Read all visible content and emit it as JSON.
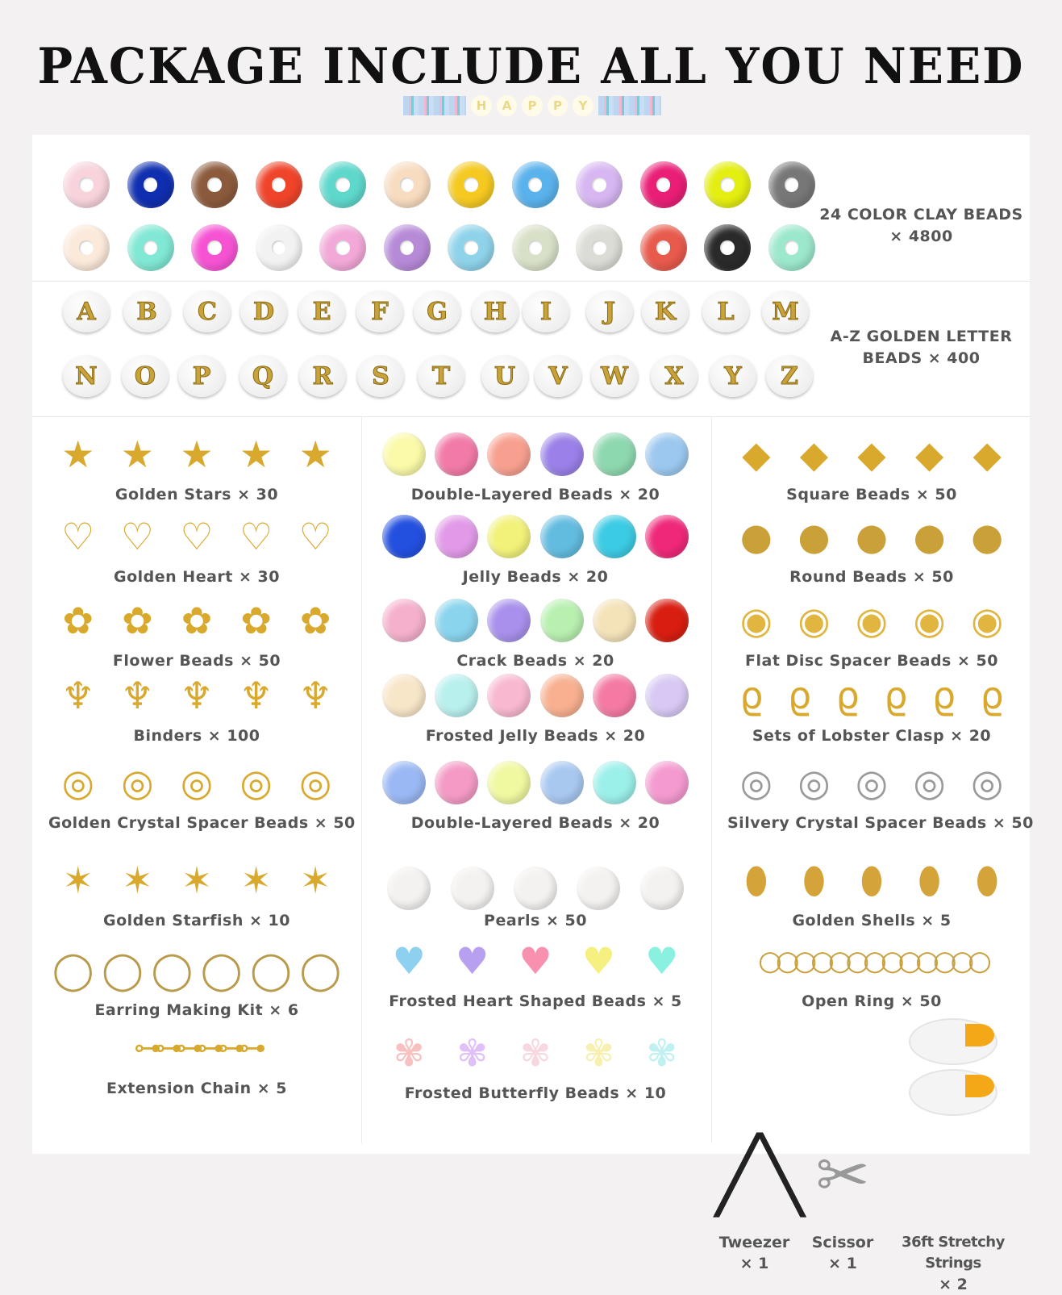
{
  "header": {
    "title": "PACKAGE INCLUDE ALL YOU NEED",
    "ribbon_letters": [
      "H",
      "A",
      "P",
      "P",
      "Y"
    ]
  },
  "clay": {
    "label_line1": "24 COLOR CLAY BEADS",
    "label_line2": "× 4800",
    "colors": [
      "#f8d3dc",
      "#0f2fb0",
      "#8b5a3c",
      "#f0442a",
      "#5fd8cc",
      "#f8dcc0",
      "#f5c920",
      "#5ab2ec",
      "#d7b6f2",
      "#ea1e76",
      "#e4ee10",
      "#777777",
      "#fbe9da",
      "#80e8d4",
      "#f653d3",
      "#f2f2f2",
      "#f2a8d8",
      "#b78ad8",
      "#8fd3ea",
      "#d8e0c8",
      "#dcdcd6",
      "#e85a4c",
      "#2a2a2a",
      "#9ce8cc"
    ]
  },
  "letters": {
    "label_line1": "A-Z GOLDEN LETTER",
    "label_line2": "BEADS × 400",
    "row1": [
      "A",
      "B",
      "C",
      "D",
      "E",
      "F",
      "G",
      "H",
      "I",
      "J",
      "K",
      "L",
      "M"
    ],
    "row2": [
      "N",
      "O",
      "P",
      "Q",
      "R",
      "S",
      "T",
      "U",
      "V",
      "W",
      "X",
      "Y",
      "Z"
    ]
  },
  "columns": [
    [
      {
        "label": "Golden Stars × 30",
        "glyph": "★",
        "color": "#d9a92e",
        "n": 5
      },
      {
        "label": "Golden Heart × 30",
        "glyph": "♡",
        "color": "#d9a92e",
        "n": 5
      },
      {
        "label": "Flower Beads × 50",
        "glyph": "✿",
        "color": "#d9a92e",
        "n": 5
      },
      {
        "label": "Binders × 100",
        "glyph": "♆",
        "color": "#d9a92e",
        "n": 5
      },
      {
        "label": "Golden Crystal Spacer Beads × 50",
        "glyph": "◎",
        "color": "#d9a92e",
        "n": 5
      },
      {
        "label": "Golden Starfish × 10",
        "glyph": "✶",
        "color": "#d9a92e",
        "n": 5
      },
      {
        "label": "Earring Making Kit × 6",
        "glyph": "◯",
        "color": "#b89a4a",
        "n": 6
      },
      {
        "label": "Extension Chain × 5",
        "glyph": "⊶⊶⊶⊶⊶⊶",
        "color": "#d9a92e",
        "n": 1
      }
    ],
    [
      {
        "label": "Double-Layered Beads × 20",
        "colors": [
          "#fafaa8",
          "#f27aa8",
          "#f8a090",
          "#9a80e8",
          "#8ed8b0",
          "#9cc8f0"
        ]
      },
      {
        "label": "Jelly Beads × 20",
        "colors": [
          "#2450e0",
          "#e29ae8",
          "#f2f27a",
          "#62bce0",
          "#3ccbe4",
          "#f0287a"
        ]
      },
      {
        "label": "Crack Beads × 20",
        "colors": [
          "#f5b0cc",
          "#8ad4ee",
          "#a890ec",
          "#b8f0b0",
          "#f4e2b8",
          "#d81e10"
        ]
      },
      {
        "label": "Frosted Jelly Beads × 20",
        "colors": [
          "#f8e6c8",
          "#b8f0ee",
          "#f8b8d0",
          "#f8b090",
          "#f47aa4",
          "#d8c8f4"
        ]
      },
      {
        "label": "Double-Layered Beads × 20",
        "colors": [
          "#9ab8f4",
          "#f49ac4",
          "#f0f8a0",
          "#a8c8f0",
          "#9cf0ea",
          "#f49ad0"
        ]
      },
      {
        "label": "Pearls × 50",
        "colors": [
          "#f4f2f0",
          "#f4f2f0",
          "#f4f2f0",
          "#f4f2f0",
          "#f4f2f0"
        ]
      },
      {
        "label": "Frosted Heart Shaped Beads × 5",
        "heart": [
          "#8ed0f0",
          "#b8a0f0",
          "#f890b0",
          "#f6f080",
          "#8af0e0"
        ]
      },
      {
        "label": "Frosted Butterfly Beads × 10",
        "butterfly": [
          "#f8c0c0",
          "#e0c0f8",
          "#f8d8e0",
          "#f8f0b0",
          "#c0f0f0"
        ]
      }
    ],
    [
      {
        "label": "Square Beads × 50",
        "glyph": "◆",
        "color": "#d9a92e",
        "n": 5
      },
      {
        "label": "Round Beads × 50",
        "glyph": "●",
        "color": "#caa038",
        "n": 5
      },
      {
        "label": "Flat Disc Spacer Beads × 50",
        "glyph": "◉",
        "color": "#e0b640",
        "n": 5
      },
      {
        "label": "Sets of Lobster Clasp × 20",
        "glyph": "ϱ",
        "color": "#d9a92e",
        "n": 6
      },
      {
        "label": "Silvery Crystal Spacer Beads × 50",
        "glyph": "◎",
        "color": "#9a9a9a",
        "n": 5
      },
      {
        "label": "Golden Shells × 5",
        "glyph": "⬮",
        "color": "#d4a43a",
        "n": 5
      },
      {
        "label": "Open Ring × 50",
        "glyph": "○○○○○○○○○○○○○",
        "color": "#c9a040",
        "n": 1
      }
    ]
  ],
  "tools": [
    {
      "name": "Tweezer",
      "count": "× 1"
    },
    {
      "name": "Scissor",
      "count": "× 1"
    },
    {
      "name": "36ft Stretchy Strings",
      "count": "× 2"
    }
  ]
}
